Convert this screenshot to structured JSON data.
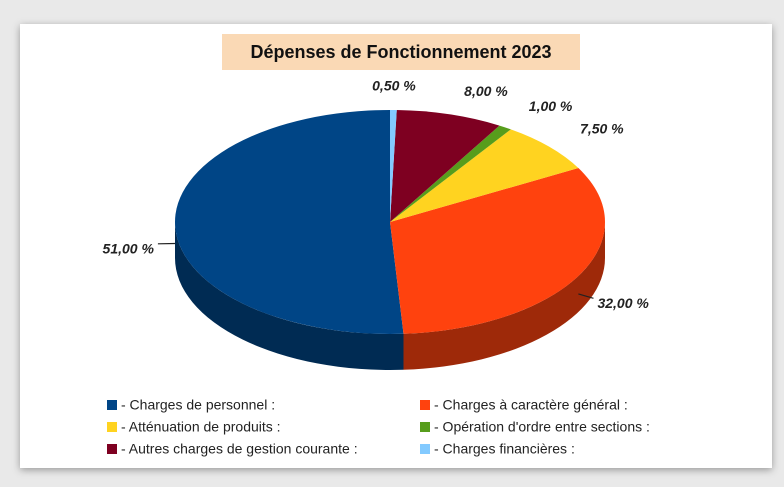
{
  "chart_data": {
    "type": "pie",
    "title": "Dépenses de Fonctionnement 2023",
    "categories": [
      "- Charges de personnel :",
      "- Charges à caractère général :",
      "- Atténuation de produits :",
      "- Opération d'ordre entre sections :",
      "- Autres charges de gestion courante :",
      "- Charges financières :"
    ],
    "values": [
      51,
      32,
      7.5,
      1,
      8,
      0.5
    ],
    "value_labels": [
      "51,00 %",
      "32,00 %",
      "7,50 %",
      "1,00 %",
      "8,00 %",
      "0,50 %"
    ],
    "colors": [
      "#004586",
      "#ff420e",
      "#ffd320",
      "#579d1c",
      "#7e0021",
      "#83caff"
    ]
  }
}
